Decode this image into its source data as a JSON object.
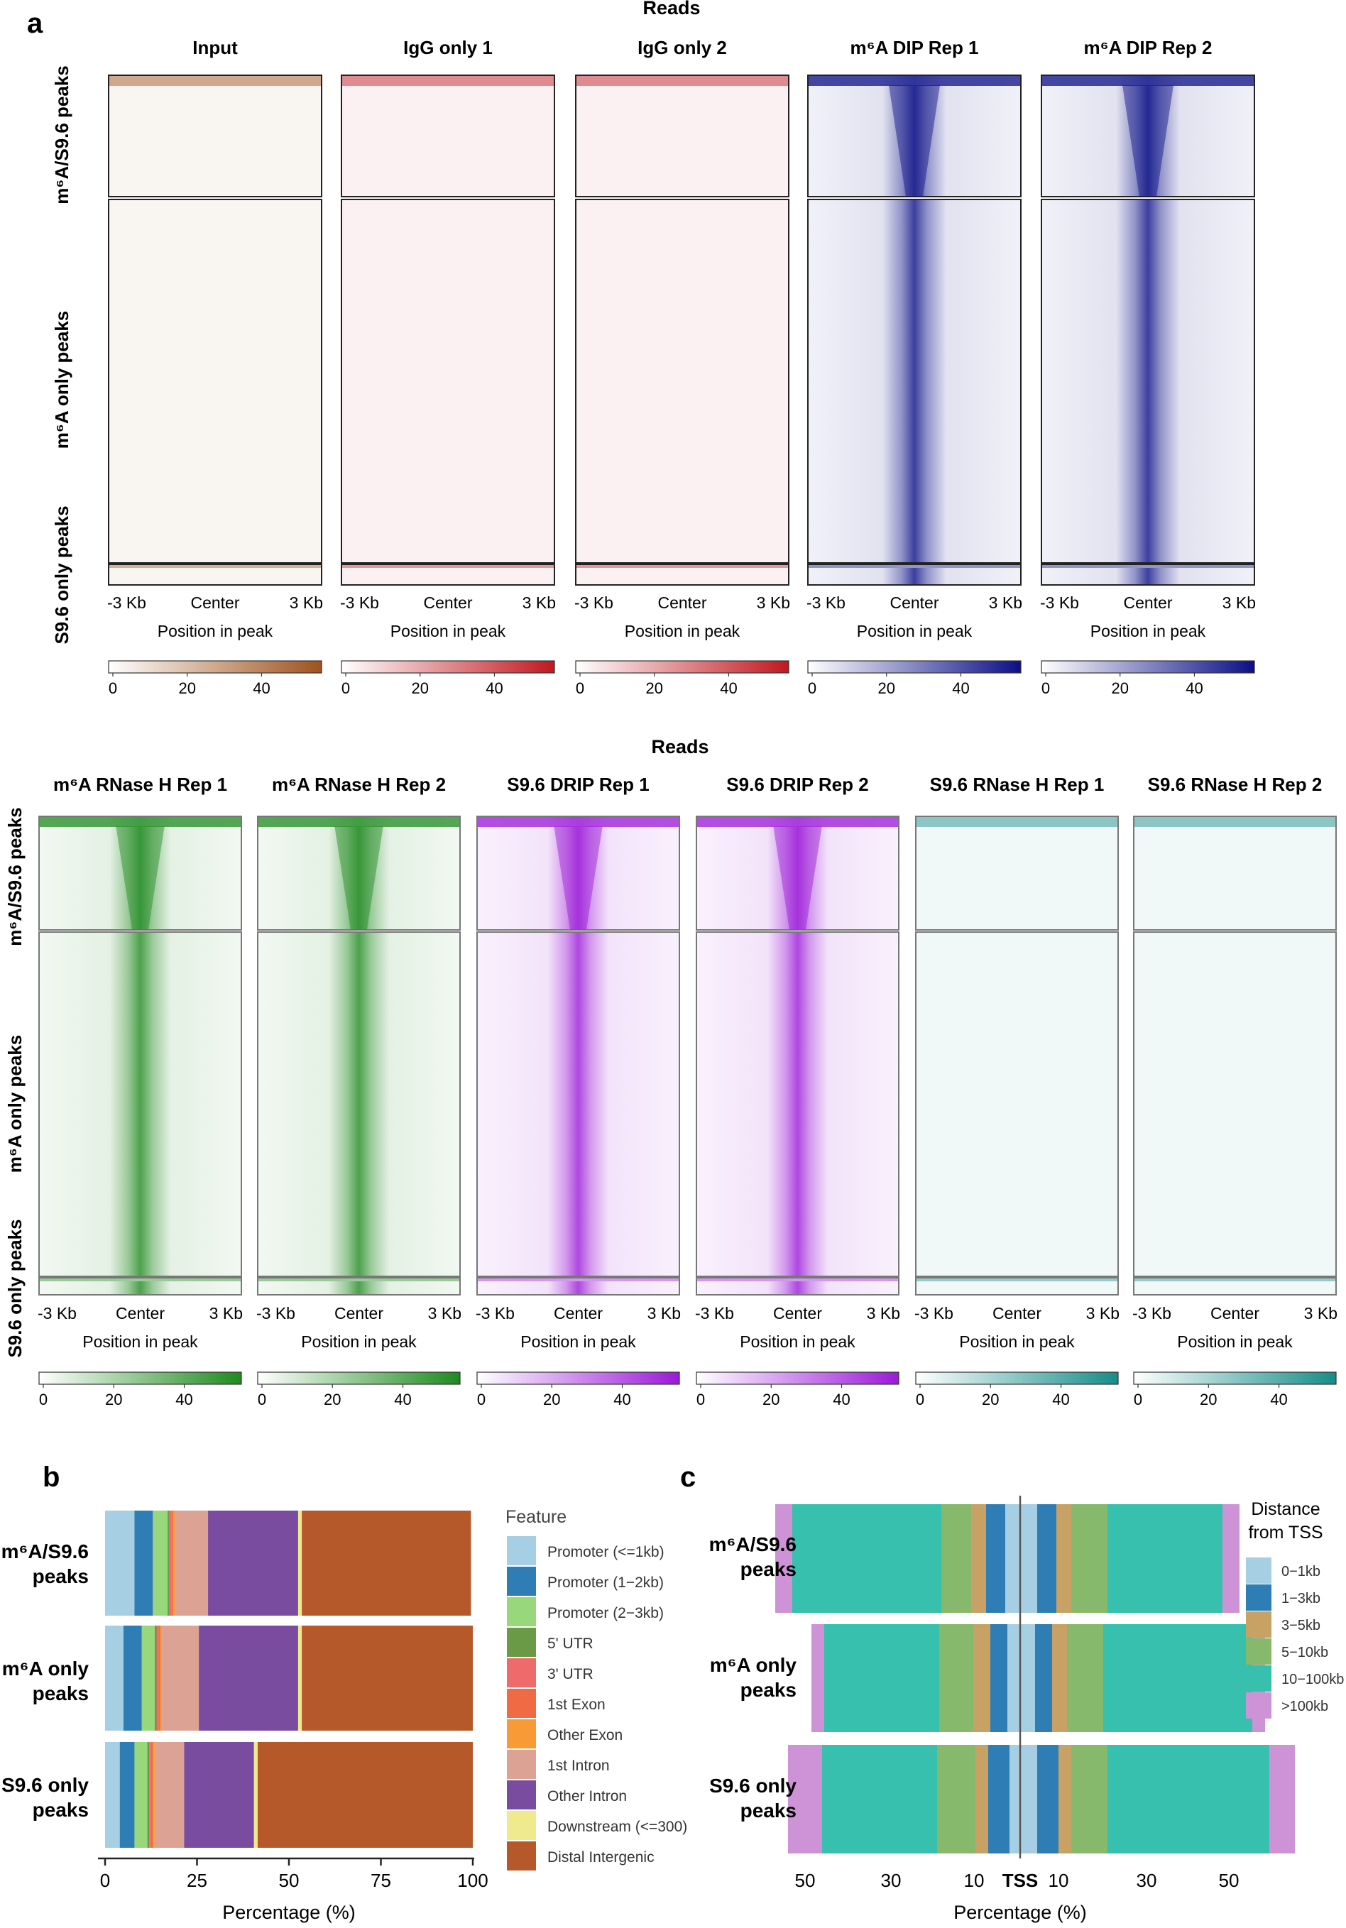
{
  "panels": {
    "a": "a",
    "b": "b",
    "c": "c"
  },
  "heatmap_top": {
    "title": "Reads",
    "columns": [
      {
        "title": "Input",
        "color": "#a0521d",
        "hasSignal": false
      },
      {
        "title": "IgG only 1",
        "color": "#c0181f",
        "hasSignal": false
      },
      {
        "title": "IgG only 2",
        "color": "#c0181f",
        "hasSignal": false
      },
      {
        "title": "m⁶A DIP Rep 1",
        "color": "#0b0f86",
        "hasSignal": true
      },
      {
        "title": "m⁶A DIP Rep 2",
        "color": "#0b0f86",
        "hasSignal": true
      }
    ],
    "row_groups": [
      "m⁶A/S9.6 peaks",
      "m⁶A only peaks",
      "S9.6 only peaks"
    ],
    "xticks": [
      "-3 Kb",
      "Center",
      "3 Kb"
    ],
    "xlabel": "Position in peak",
    "colorbar_ticks": [
      "0",
      "20",
      "40"
    ]
  },
  "heatmap_bottom": {
    "title": "Reads",
    "columns": [
      {
        "title": "m⁶A RNase H Rep 1",
        "color": "#1f8a1f",
        "hasSignal": true
      },
      {
        "title": "m⁶A RNase H Rep 2",
        "color": "#1f8a1f",
        "hasSignal": true
      },
      {
        "title": "S9.6 DRIP Rep 1",
        "color": "#9b19d8",
        "hasSignal": true
      },
      {
        "title": "S9.6 DRIP Rep 2",
        "color": "#9b19d8",
        "hasSignal": true
      },
      {
        "title": "S9.6 RNase H Rep 1",
        "color": "#178c88",
        "hasSignal": false
      },
      {
        "title": "S9.6 RNase H Rep 2",
        "color": "#178c88",
        "hasSignal": false
      }
    ],
    "row_groups": [
      "m⁶A/S9.6 peaks",
      "m⁶A only peaks",
      "S9.6 only peaks"
    ],
    "xticks": [
      "-3 Kb",
      "Center",
      "3 Kb"
    ],
    "xlabel": "Position in peak",
    "colorbar_ticks": [
      "0",
      "20",
      "40"
    ]
  },
  "chart_data": [
    {
      "type": "bar",
      "orientation": "horizontal-stacked",
      "categories": [
        "m⁶A/S9.6 peaks",
        "m⁶A only peaks",
        "S9.6 only peaks"
      ],
      "xlabel": "Percentage (%)",
      "xlim": [
        0,
        100
      ],
      "xticks": [
        0,
        25,
        50,
        75,
        100
      ],
      "legend_title": "Feature",
      "series": [
        {
          "name": "Promoter (<=1kb)",
          "color": "#a7cfe3",
          "values": [
            8,
            5,
            4
          ]
        },
        {
          "name": "Promoter (1−2kb)",
          "color": "#2e7db4",
          "values": [
            5,
            5,
            4
          ]
        },
        {
          "name": "Promoter (2−3kb)",
          "color": "#98d77b",
          "values": [
            4,
            3.5,
            3.5
          ]
        },
        {
          "name": "5' UTR",
          "color": "#6a9a45",
          "values": [
            0.5,
            0.5,
            0.5
          ]
        },
        {
          "name": "3' UTR",
          "color": "#ef6a6a",
          "values": [
            0.5,
            0.5,
            0.5
          ]
        },
        {
          "name": "1st Exon",
          "color": "#f06a44",
          "values": [
            0.5,
            0.5,
            0.5
          ]
        },
        {
          "name": "Other Exon",
          "color": "#f89a35",
          "values": [
            0.5,
            0.5,
            0.5
          ]
        },
        {
          "name": "1st Intron",
          "color": "#dca293",
          "values": [
            9,
            10,
            8
          ]
        },
        {
          "name": "Other Intron",
          "color": "#7a4ca0",
          "values": [
            24.5,
            27,
            19
          ]
        },
        {
          "name": "Downstream (<=300)",
          "color": "#f0ea8e",
          "values": [
            1,
            1,
            1
          ]
        },
        {
          "name": "Distal Intergenic",
          "color": "#b5592b",
          "values": [
            46,
            46.5,
            58.5
          ]
        }
      ]
    },
    {
      "type": "bar",
      "orientation": "horizontal-stacked-diverging",
      "categories": [
        "m⁶A/S9.6 peaks",
        "m⁶A only peaks",
        "S9.6 only peaks"
      ],
      "xlabel": "Percentage (%)",
      "center_label": "TSS",
      "xticks": [
        "50",
        "30",
        "10",
        "TSS",
        "10",
        "30",
        "50"
      ],
      "legend_title": "Distance from TSS",
      "legend_title_lines": [
        "Distance",
        "from TSS"
      ],
      "bins": [
        {
          "name": "0−1kb",
          "color": "#a7cfe3"
        },
        {
          "name": "1−3kb",
          "color": "#2e7db4"
        },
        {
          "name": "3−5kb",
          "color": "#c8a265"
        },
        {
          "name": "5−10kb",
          "color": "#86b96b"
        },
        {
          "name": "10−100kb",
          "color": "#36c0ad"
        },
        {
          "name": ">100kb",
          "color": "#ce92d6"
        }
      ],
      "upstream_values": [
        [
          3.5,
          4.5,
          3.5,
          7,
          35,
          4
        ],
        [
          3,
          4,
          4,
          8,
          27,
          3
        ],
        [
          2.5,
          5,
          3,
          9,
          27,
          8
        ]
      ],
      "downstream_values": [
        [
          4,
          4.5,
          3.5,
          8.5,
          27,
          4
        ],
        [
          3.5,
          4,
          3.5,
          8.5,
          35,
          3
        ],
        [
          4,
          5,
          3,
          8.5,
          38,
          6
        ]
      ]
    }
  ]
}
